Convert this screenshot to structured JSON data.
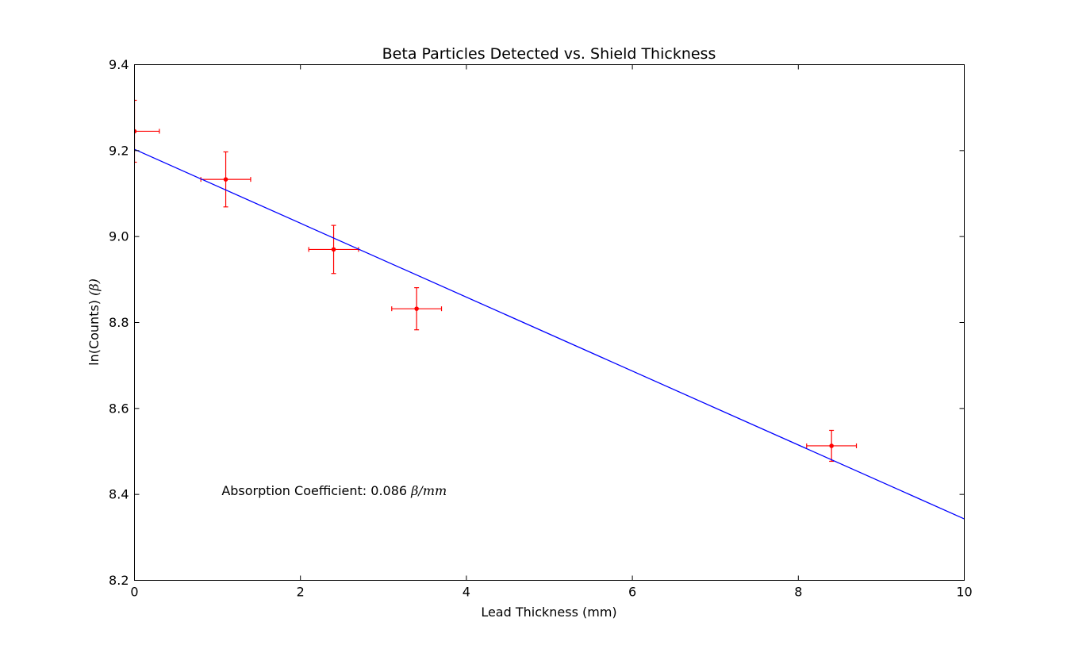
{
  "chart_data": {
    "type": "scatter",
    "title": "Beta Particles Detected vs. Shield Thickness",
    "xlabel": "Lead Thickness (mm)",
    "ylabel_text": "ln(Counts) ",
    "ylabel_math": "(β)",
    "xlim": [
      0,
      10
    ],
    "ylim": [
      8.2,
      9.4
    ],
    "grid": false,
    "x_ticks": [
      0,
      2,
      4,
      6,
      8,
      10
    ],
    "x_tick_labels": [
      "0",
      "2",
      "4",
      "6",
      "8",
      "10"
    ],
    "y_ticks": [
      8.2,
      8.4,
      8.6,
      8.8,
      9.0,
      9.2,
      9.4
    ],
    "y_tick_labels": [
      "8.2",
      "8.4",
      "8.6",
      "8.8",
      "9.0",
      "9.2",
      "9.4"
    ],
    "series": [
      {
        "kind": "errorbar",
        "color": "#ff0000",
        "x": [
          0.0,
          1.1,
          2.4,
          3.4,
          8.4
        ],
        "y": [
          9.245,
          9.133,
          8.97,
          8.832,
          8.513
        ],
        "xerr": [
          0.3,
          0.3,
          0.3,
          0.3,
          0.3
        ],
        "yerr": [
          0.072,
          0.064,
          0.056,
          0.049,
          0.036
        ]
      },
      {
        "kind": "line",
        "color": "#0000ff",
        "x": [
          0,
          10
        ],
        "y": [
          9.203,
          8.343
        ]
      }
    ],
    "annotation": {
      "text": "Absorption Coefficient: 0.086 ",
      "math": "β/mm",
      "x": 1.05,
      "y": 8.4
    }
  }
}
